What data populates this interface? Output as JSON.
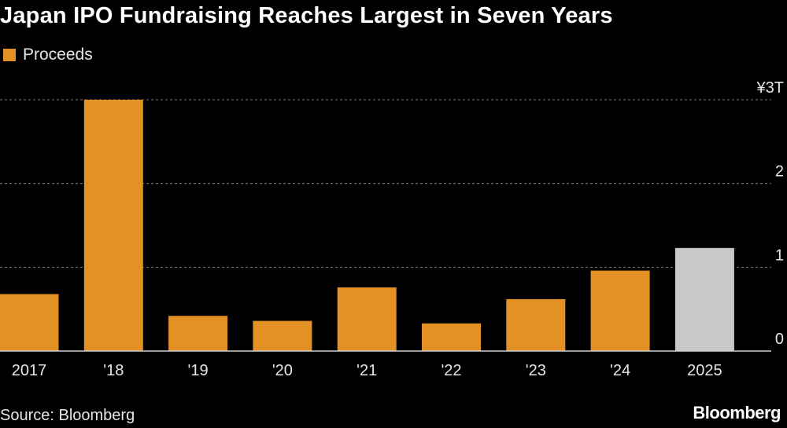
{
  "title": "Japan IPO Fundraising Reaches Largest in Seven Years",
  "legend": {
    "label": "Proceeds",
    "color": "#E39025"
  },
  "source": "Source: Bloomberg",
  "brand": "Bloomberg",
  "colors": {
    "primary": "#E39025",
    "highlight": "#C8C8C8",
    "grid": "#7a7a7a",
    "axis": "#cfcfcf",
    "text": "#e6e6e6"
  },
  "chart_data": {
    "type": "bar",
    "title": "Japan IPO Fundraising Reaches Largest in Seven Years",
    "xlabel": "",
    "ylabel": "",
    "series": [
      {
        "name": "Proceeds",
        "values": [
          0.68,
          3.0,
          0.42,
          0.36,
          0.76,
          0.33,
          0.62,
          0.96,
          1.23
        ]
      }
    ],
    "categories": [
      "2017",
      "'18",
      "'19",
      "'20",
      "'21",
      "'22",
      "'23",
      "'24",
      "2025"
    ],
    "bar_colors": [
      "#E39025",
      "#E39025",
      "#E39025",
      "#E39025",
      "#E39025",
      "#E39025",
      "#E39025",
      "#E39025",
      "#C8C8C8"
    ],
    "ylim": [
      0,
      3
    ],
    "yticks": [
      0,
      1,
      2,
      3
    ],
    "ytick_labels": [
      "0",
      "1",
      "2",
      "¥3T"
    ],
    "grid": true,
    "legend_position": "top-left"
  }
}
